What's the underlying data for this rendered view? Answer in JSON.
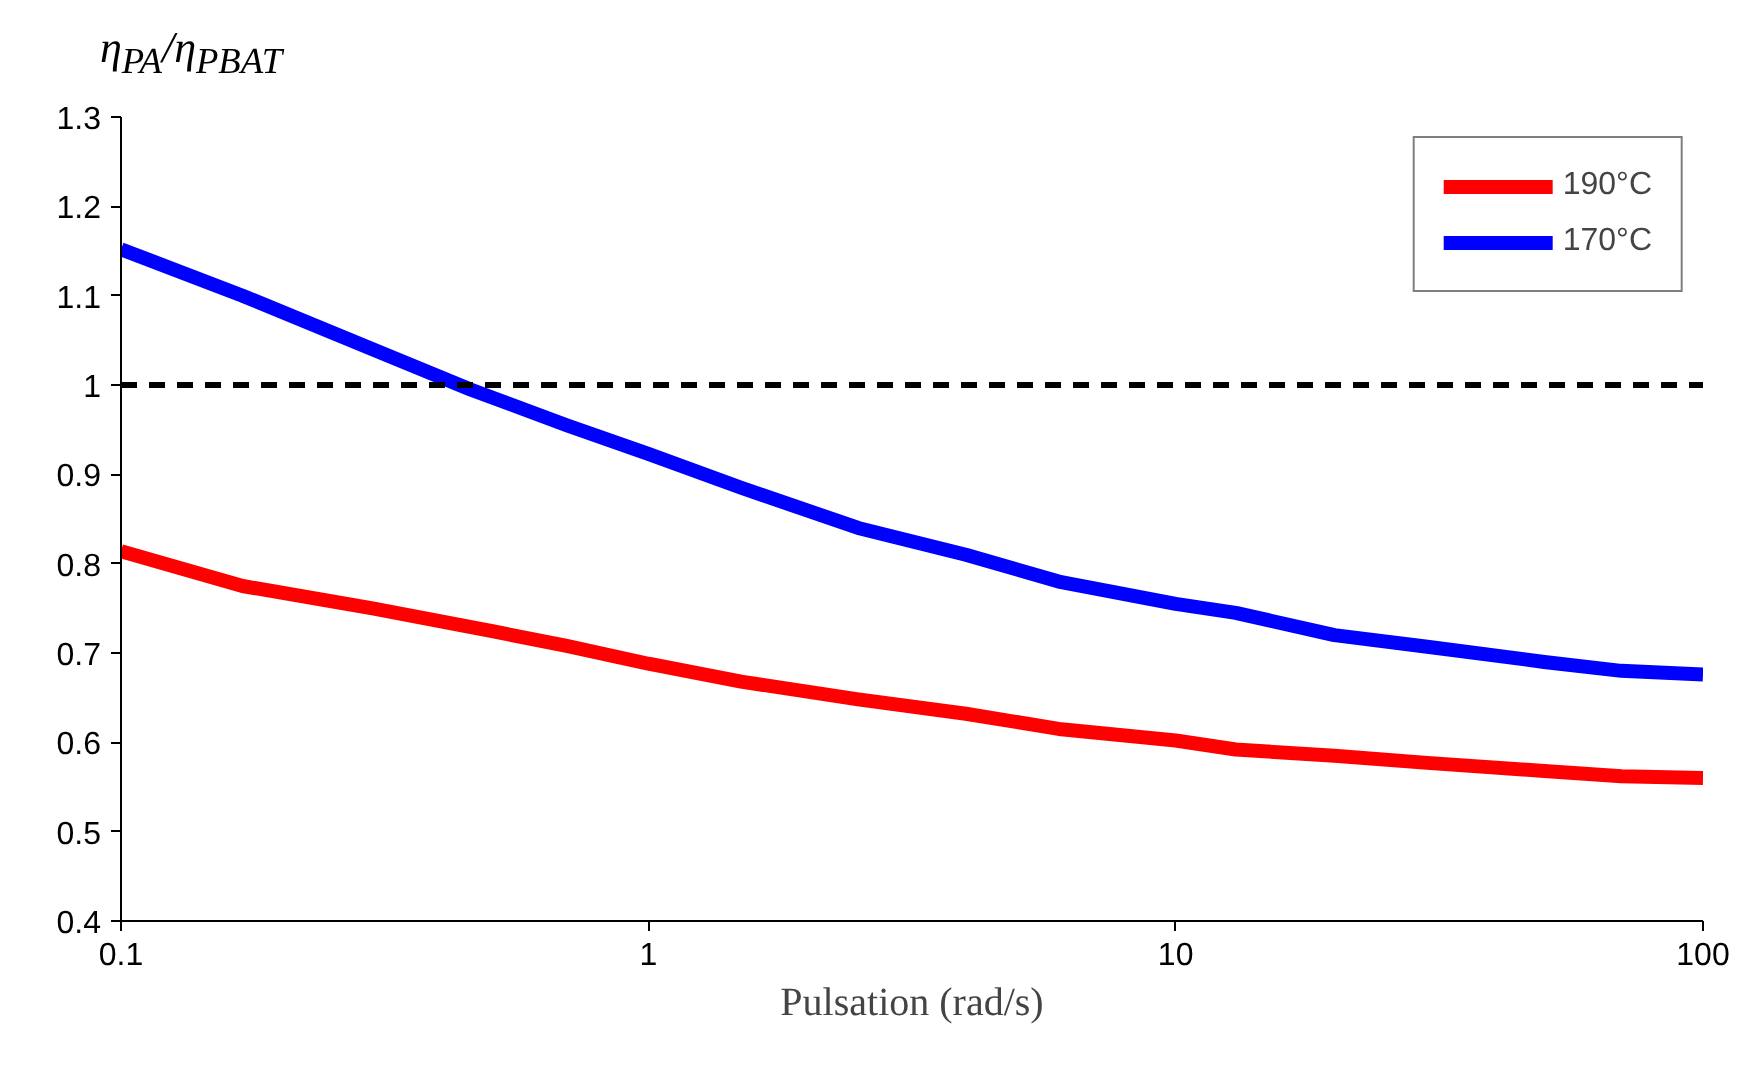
{
  "chart_data": {
    "type": "line",
    "xlabel": "Pulsation (rad/s)",
    "ylabel": "η$_{PA}$/η$_{PBAT}$",
    "log": "x",
    "xlim": [
      0.1,
      100
    ],
    "xticks": [
      0.1,
      1,
      10,
      100
    ],
    "ylim": [
      0.4,
      1.3
    ],
    "yticks": [
      0.4,
      0.5,
      0.6,
      0.7,
      0.8,
      0.9,
      1,
      1.1,
      1.2,
      1.3
    ],
    "grid": false,
    "legend": "top right",
    "line_style": "solid",
    "marker": "none",
    "series": [
      {
        "name": "190°C",
        "color": "#ff0000",
        "x": [
          0.1,
          0.17,
          0.3,
          0.5,
          0.7,
          1,
          1.5,
          2.5,
          4,
          6,
          10,
          13,
          20,
          30,
          50,
          70,
          100
        ],
        "values": [
          0.814,
          0.775,
          0.75,
          0.725,
          0.708,
          0.688,
          0.668,
          0.648,
          0.632,
          0.615,
          0.602,
          0.592,
          0.585,
          0.577,
          0.568,
          0.562,
          0.56
        ]
      },
      {
        "name": "170°C",
        "color": "#0000ff",
        "x": [
          0.1,
          0.17,
          0.3,
          0.46,
          0.7,
          1,
          1.5,
          2.5,
          4,
          6,
          10,
          13,
          20,
          30,
          50,
          70,
          100
        ],
        "values": [
          1.152,
          1.1,
          1.04,
          0.995,
          0.955,
          0.923,
          0.885,
          0.84,
          0.81,
          0.78,
          0.755,
          0.745,
          0.72,
          0.707,
          0.69,
          0.68,
          0.676
        ]
      }
    ],
    "ref_lines": [
      {
        "axis": "y",
        "value": 1,
        "color": "#000000",
        "line_style": "dashed"
      }
    ]
  }
}
